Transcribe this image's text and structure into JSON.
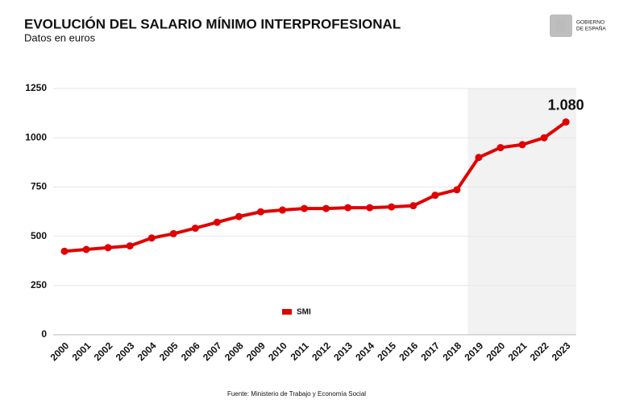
{
  "header": {
    "logo_lines": [
      "GOBIERNO",
      "DE ESPAÑA"
    ]
  },
  "chart_data": {
    "type": "line",
    "title": "EVOLUCIÓN DEL SALARIO MÍNIMO INTERPROFESIONAL",
    "subtitle": "Datos en euros",
    "source": "Fuente: Ministerio de Trabajo y Economía Social",
    "categories": [
      "2000",
      "2001",
      "2002",
      "2003",
      "2004",
      "2005",
      "2006",
      "2007",
      "2008",
      "2009",
      "2010",
      "2011",
      "2012",
      "2013",
      "2014",
      "2015",
      "2016",
      "2017",
      "2018",
      "2019",
      "2020",
      "2021",
      "2022",
      "2023"
    ],
    "series": [
      {
        "name": "SMI",
        "color": "#e00000",
        "values": [
          424,
          433,
          442,
          451,
          491,
          513,
          541,
          571,
          600,
          624,
          633,
          641,
          641,
          645,
          645,
          649,
          655,
          708,
          736,
          900,
          950,
          965,
          1000,
          1080
        ],
        "value_labels": [
          null,
          null,
          null,
          null,
          null,
          null,
          null,
          null,
          null,
          null,
          null,
          null,
          null,
          null,
          null,
          null,
          null,
          null,
          null,
          null,
          null,
          null,
          null,
          "1.080"
        ]
      }
    ],
    "ylim": [
      0,
      1250
    ],
    "yticks": [
      0,
      250,
      500,
      750,
      1000,
      1250
    ],
    "grid": true,
    "shade_from": "2019",
    "shade_color": "#f2f2f2",
    "legend": "bottom-center"
  }
}
